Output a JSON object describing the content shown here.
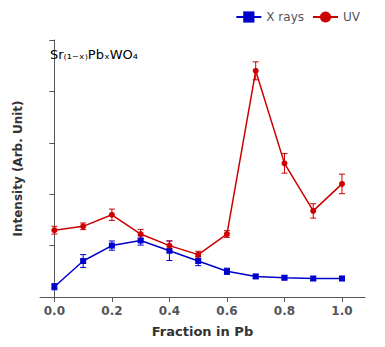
{
  "chart_data": {
    "type": "line",
    "annotation": "Sr₍₁₋ₓ₎PbₓWO₄",
    "xlabel": "Fraction in Pb",
    "ylabel": "Intensity (Arb. Unit)",
    "series": [
      {
        "name": "X rays",
        "color": "#0000cc",
        "marker": "square",
        "line_style": "solid",
        "x": [
          0.0,
          0.1,
          0.2,
          0.3,
          0.4,
          0.5,
          0.6,
          0.7,
          0.8,
          0.9,
          1.0
        ],
        "values": [
          0.04,
          0.14,
          0.2,
          0.22,
          0.18,
          0.14,
          0.1,
          0.08,
          0.075,
          0.072,
          0.072
        ],
        "errors": [
          0.012,
          0.025,
          0.018,
          0.018,
          0.038,
          0.018,
          0.012,
          0.008,
          0.008,
          0.008,
          0.008
        ]
      },
      {
        "name": "UV",
        "color": "#cc0000",
        "marker": "circle",
        "line_style": "solid",
        "x": [
          0.0,
          0.1,
          0.2,
          0.3,
          0.4,
          0.5,
          0.6,
          0.7,
          0.8,
          0.9,
          1.0
        ],
        "values": [
          0.26,
          0.275,
          0.32,
          0.245,
          0.2,
          0.165,
          0.245,
          0.88,
          0.52,
          0.335,
          0.44
        ],
        "errors": [
          0.015,
          0.013,
          0.022,
          0.018,
          0.018,
          0.013,
          0.013,
          0.035,
          0.038,
          0.028,
          0.038
        ]
      }
    ],
    "xlim": [
      -0.05,
      1.08
    ],
    "xticks": [
      {
        "value": 0,
        "label": "0.0"
      },
      0.2,
      0.4,
      0.6,
      0.8,
      {
        "value": 1,
        "label": "1.0"
      }
    ],
    "ylim": [
      0,
      1
    ],
    "yticks": [
      0,
      0.2,
      0.4,
      0.6,
      0.8,
      1
    ],
    "tick_labels": "x",
    "grid": false,
    "legend": "upper right"
  }
}
